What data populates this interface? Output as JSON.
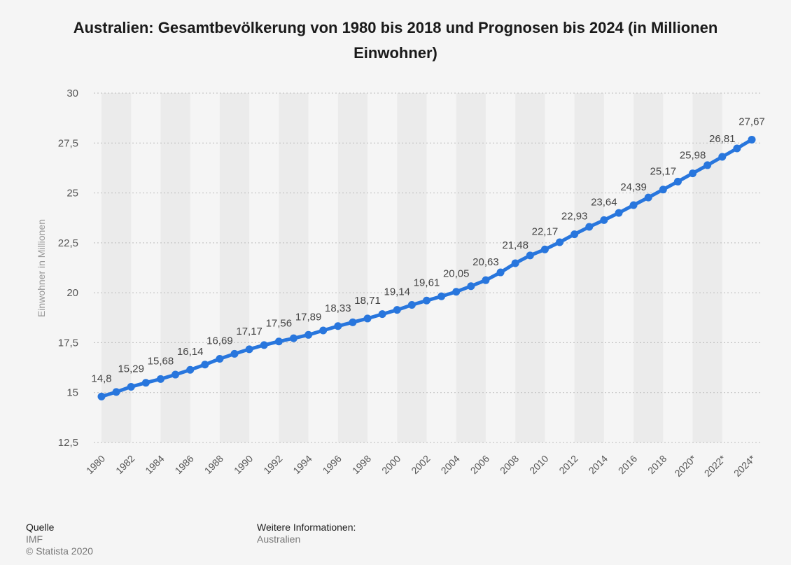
{
  "chart_data": {
    "type": "line",
    "title": "Australien: Gesamtbevölkerung von 1980 bis 2018 und Prognosen bis 2024 (in Millionen Einwohner)",
    "xlabel": "",
    "ylabel": "Einwohner in Millionen",
    "ylim": [
      12.5,
      30
    ],
    "yticks": [
      "12,5",
      "15",
      "17,5",
      "20",
      "22,5",
      "25",
      "27,5",
      "30"
    ],
    "ytick_values": [
      12.5,
      15,
      17.5,
      20,
      22.5,
      25,
      27.5,
      30
    ],
    "grid": true,
    "x": [
      "1980",
      "1981",
      "1982",
      "1983",
      "1984",
      "1985",
      "1986",
      "1987",
      "1988",
      "1989",
      "1990",
      "1991",
      "1992",
      "1993",
      "1994",
      "1995",
      "1996",
      "1997",
      "1998",
      "1999",
      "2000",
      "2001",
      "2002",
      "2003",
      "2004",
      "2005",
      "2006",
      "2007",
      "2008",
      "2009",
      "2010",
      "2011",
      "2012",
      "2013",
      "2014",
      "2015",
      "2016",
      "2017",
      "2018",
      "2019",
      "2020*",
      "2021*",
      "2022*",
      "2023*",
      "2024*"
    ],
    "xtick_labels": [
      "1980",
      "1982",
      "1984",
      "1986",
      "1988",
      "1990",
      "1992",
      "1994",
      "1996",
      "1998",
      "2000",
      "2002",
      "2004",
      "2006",
      "2008",
      "2010",
      "2012",
      "2014",
      "2016",
      "2018",
      "2020*",
      "2022*",
      "2024*"
    ],
    "series": [
      {
        "name": "Gesamtbevölkerung",
        "color": "#2876dd",
        "values": [
          14.8,
          15.03,
          15.29,
          15.49,
          15.68,
          15.9,
          16.14,
          16.4,
          16.69,
          16.94,
          17.17,
          17.38,
          17.56,
          17.72,
          17.89,
          18.11,
          18.33,
          18.52,
          18.71,
          18.93,
          19.14,
          19.39,
          19.61,
          19.82,
          20.05,
          20.33,
          20.63,
          21.02,
          21.48,
          21.87,
          22.17,
          22.53,
          22.93,
          23.3,
          23.64,
          24.0,
          24.39,
          24.77,
          25.17,
          25.57,
          25.98,
          26.39,
          26.81,
          27.23,
          27.67
        ]
      }
    ],
    "data_labels": [
      {
        "index": 0,
        "text": "14,8"
      },
      {
        "index": 2,
        "text": "15,29"
      },
      {
        "index": 4,
        "text": "15,68"
      },
      {
        "index": 6,
        "text": "16,14"
      },
      {
        "index": 8,
        "text": "16,69"
      },
      {
        "index": 10,
        "text": "17,17"
      },
      {
        "index": 12,
        "text": "17,56"
      },
      {
        "index": 14,
        "text": "17,89"
      },
      {
        "index": 16,
        "text": "18,33"
      },
      {
        "index": 18,
        "text": "18,71"
      },
      {
        "index": 20,
        "text": "19,14"
      },
      {
        "index": 22,
        "text": "19,61"
      },
      {
        "index": 24,
        "text": "20,05"
      },
      {
        "index": 26,
        "text": "20,63"
      },
      {
        "index": 28,
        "text": "21,48"
      },
      {
        "index": 30,
        "text": "22,17"
      },
      {
        "index": 32,
        "text": "22,93"
      },
      {
        "index": 34,
        "text": "23,64"
      },
      {
        "index": 36,
        "text": "24,39"
      },
      {
        "index": 38,
        "text": "25,17"
      },
      {
        "index": 40,
        "text": "25,98"
      },
      {
        "index": 42,
        "text": "26,81"
      },
      {
        "index": 44,
        "text": "27,67"
      }
    ]
  },
  "footer": {
    "source_heading": "Quelle",
    "source_name": "IMF",
    "copyright": "© Statista 2020",
    "info_heading": "Weitere Informationen:",
    "info_value": "Australien"
  },
  "colors": {
    "line": "#2876dd",
    "band": "#ebebeb",
    "grid": "#bdbdbd",
    "background": "#f5f5f5"
  }
}
